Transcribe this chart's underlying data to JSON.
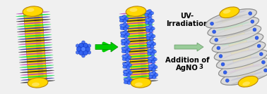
{
  "background_color": "#f0f0f0",
  "arrow1_color": "#00cc00",
  "arrow2_color": "#88aa88",
  "gold_color": "#FFD700",
  "gold_mid": "#E8B800",
  "gold_dark": "#B8860B",
  "gold_shade": "#cc9900",
  "stripe_blue": "#3333aa",
  "stripe_green": "#00dd44",
  "stripe_purple": "#bb44bb",
  "stripe_black": "#222222",
  "blue_pom": "#2255ee",
  "blue_pom_dark": "#1133bb",
  "blue_pom_light": "#4477ff",
  "silver_light": "#dddddd",
  "silver_mid": "#bbbbbb",
  "silver_dark": "#888888",
  "text_uv": "UV-\nIrradiation",
  "text_add": "Addition of\nAgNO",
  "label_fontsize": 7.2
}
